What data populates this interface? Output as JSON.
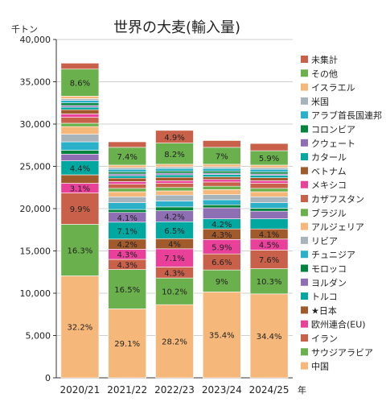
{
  "chart_data": {
    "type": "bar",
    "stacked": true,
    "title": "世界の大麦(輸入量)",
    "ylabel": "千トン",
    "xlabel": "年",
    "ylim": [
      0,
      40000
    ],
    "yticks": [
      0,
      5000,
      10000,
      15000,
      20000,
      25000,
      30000,
      35000,
      40000
    ],
    "ytick_labels": [
      "0",
      "5,000",
      "10,000",
      "15,000",
      "20,000",
      "25,000",
      "30,000",
      "35,000",
      "40,000"
    ],
    "categories": [
      "2020/21",
      "2021/22",
      "2022/23",
      "2023/24",
      "2024/25"
    ],
    "grid": true,
    "legend_position": "right",
    "series": [
      {
        "name": "中国",
        "color": "#f5b87a",
        "values": [
          12050,
          8150,
          8650,
          10150,
          9920
        ],
        "labels": [
          "32.2%",
          "29.1%",
          "28.2%",
          "35.4%",
          "34.4%"
        ]
      },
      {
        "name": "サウジアラビア",
        "color": "#6ab04c",
        "values": [
          6100,
          4650,
          3150,
          2600,
          2980
        ],
        "labels": [
          "16.3%",
          "16.5%",
          "10.2%",
          "9%",
          "10.3%"
        ]
      },
      {
        "name": "イラン",
        "color": "#c8604a",
        "values": [
          3700,
          1200,
          1300,
          1900,
          2200
        ],
        "labels": [
          "9.9%",
          "4.3%",
          "4.3%",
          "6.6%",
          "7.6%"
        ]
      },
      {
        "name": "欧州連合(EU)",
        "color": "#e9409a",
        "values": [
          1150,
          1200,
          2150,
          1700,
          1300
        ],
        "labels": [
          "3.1%",
          "4.3%",
          "7.1%",
          "5.9%",
          "4.5%"
        ]
      },
      {
        "name": "★日本",
        "color": "#a05a2c",
        "values": [
          1000,
          1200,
          1200,
          1250,
          1200
        ],
        "labels": [
          "",
          "4.2%",
          "4%",
          "4.3%",
          "4.1%"
        ]
      },
      {
        "name": "トルコ",
        "color": "#00a8a0",
        "values": [
          1650,
          2000,
          2000,
          1200,
          1200
        ],
        "labels": [
          "4.4%",
          "7.1%",
          "6.5%",
          "4.2%",
          ""
        ]
      },
      {
        "name": "ヨルダン",
        "color": "#8e6fb4",
        "values": [
          800,
          1150,
          1300,
          1300,
          900
        ],
        "labels": [
          "",
          "4.1%",
          "4.2%",
          "",
          ""
        ]
      },
      {
        "name": "モロッコ",
        "color": "#00843d",
        "values": [
          450,
          350,
          450,
          350,
          350
        ],
        "labels": [
          "",
          "",
          "",
          "",
          ""
        ]
      },
      {
        "name": "チュニジア",
        "color": "#2ab0c8",
        "values": [
          1000,
          800,
          700,
          600,
          650
        ],
        "labels": [
          "",
          "",
          "",
          "",
          ""
        ]
      },
      {
        "name": "リビア",
        "color": "#a8b4bc",
        "values": [
          900,
          700,
          700,
          600,
          700
        ],
        "labels": [
          "",
          "",
          "",
          "",
          ""
        ]
      },
      {
        "name": "アルジェリア",
        "color": "#f5b87a",
        "values": [
          900,
          600,
          500,
          600,
          600
        ],
        "labels": [
          "",
          "",
          "",
          "",
          ""
        ]
      },
      {
        "name": "ブラジル",
        "color": "#6ab04c",
        "values": [
          400,
          400,
          400,
          400,
          400
        ],
        "labels": [
          "",
          "",
          "",
          "",
          ""
        ]
      },
      {
        "name": "カザフスタン",
        "color": "#c8604a",
        "values": [
          700,
          500,
          500,
          500,
          600
        ],
        "labels": [
          "",
          "",
          "",
          "",
          ""
        ]
      },
      {
        "name": "メキシコ",
        "color": "#e9409a",
        "values": [
          400,
          300,
          300,
          300,
          300
        ],
        "labels": [
          "",
          "",
          "",
          "",
          ""
        ]
      },
      {
        "name": "ベトナム",
        "color": "#a05a2c",
        "values": [
          500,
          400,
          400,
          300,
          350
        ],
        "labels": [
          "",
          "",
          "",
          "",
          ""
        ]
      },
      {
        "name": "カタール",
        "color": "#00a8a0",
        "values": [
          300,
          300,
          300,
          300,
          300
        ],
        "labels": [
          "",
          "",
          "",
          "",
          ""
        ]
      },
      {
        "name": "クウェート",
        "color": "#8e6fb4",
        "values": [
          200,
          200,
          200,
          150,
          150
        ],
        "labels": [
          "",
          "",
          "",
          "",
          ""
        ]
      },
      {
        "name": "コロンビア",
        "color": "#00843d",
        "values": [
          300,
          250,
          250,
          250,
          250
        ],
        "labels": [
          "",
          "",
          "",
          "",
          ""
        ]
      },
      {
        "name": "アラブ首長国連邦",
        "color": "#2ab0c8",
        "values": [
          300,
          300,
          300,
          300,
          300
        ],
        "labels": [
          "",
          "",
          "",
          "",
          ""
        ]
      },
      {
        "name": "米国",
        "color": "#a8b4bc",
        "values": [
          200,
          200,
          200,
          200,
          200
        ],
        "labels": [
          "",
          "",
          "",
          "",
          ""
        ]
      },
      {
        "name": "イスラエル",
        "color": "#f5b87a",
        "values": [
          300,
          300,
          300,
          300,
          300
        ],
        "labels": [
          "",
          "",
          "",
          "",
          ""
        ]
      },
      {
        "name": "その他",
        "color": "#6ab04c",
        "values": [
          3200,
          2100,
          2500,
          2000,
          1700
        ],
        "labels": [
          "8.6%",
          "7.4%",
          "8.2%",
          "7%",
          "5.9%"
        ]
      },
      {
        "name": "未集計",
        "color": "#c8604a",
        "values": [
          700,
          650,
          1500,
          800,
          850
        ],
        "labels": [
          "",
          "",
          "4.9%",
          "",
          ""
        ]
      }
    ]
  }
}
